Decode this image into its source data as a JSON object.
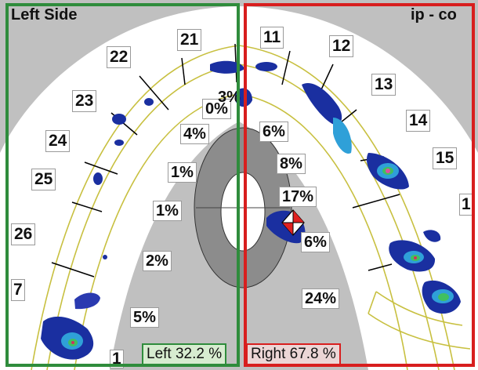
{
  "panels": {
    "left_title": "Left Side",
    "right_title": "ip - co",
    "left_total": "Left 32.2 %",
    "right_total": "Right 67.8 %",
    "left_color": "#2f8c3c",
    "right_color": "#d81e1e"
  },
  "teeth": {
    "t21": "21",
    "t22": "22",
    "t23": "23",
    "t24": "24",
    "t25": "25",
    "t26": "26",
    "t27": "7",
    "t11": "11",
    "t12": "12",
    "t13": "13",
    "t14": "14",
    "t15": "15",
    "t16": "1",
    "t17": "1"
  },
  "percents": {
    "p1": "0%",
    "p2": "3%",
    "p3": "4%",
    "p4": "1%",
    "p5": "1%",
    "p6": "2%",
    "p7": "5%",
    "p8": "6%",
    "p9": "8%",
    "p10": "17%",
    "p11": "6%",
    "p12": "24%"
  }
}
